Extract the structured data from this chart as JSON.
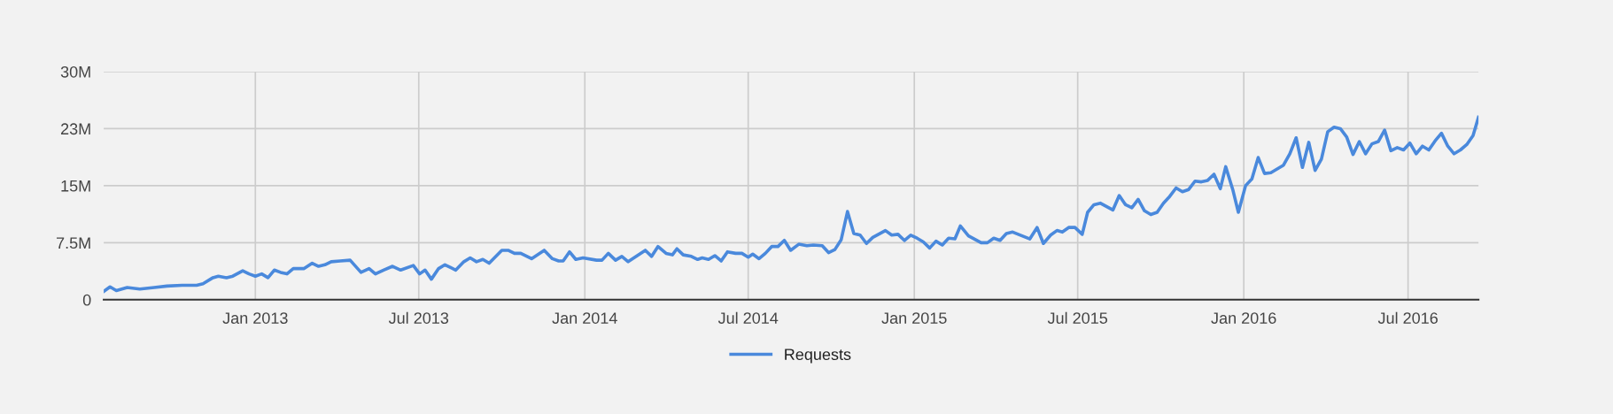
{
  "chart_data": {
    "type": "line",
    "x": [
      "2012-07-17",
      "2012-07-24",
      "2012-07-31",
      "2012-08-12",
      "2012-08-26",
      "2012-09-11",
      "2012-09-25",
      "2012-10-12",
      "2012-10-28",
      "2012-11-04",
      "2012-11-15",
      "2012-11-21",
      "2012-11-30",
      "2012-12-07",
      "2012-12-18",
      "2012-12-25",
      "2013-01-01",
      "2013-01-08",
      "2013-01-15",
      "2013-01-22",
      "2013-01-29",
      "2013-02-05",
      "2013-02-12",
      "2013-02-24",
      "2013-03-05",
      "2013-03-12",
      "2013-03-19",
      "2013-03-26",
      "2013-04-05",
      "2013-04-16",
      "2013-04-28",
      "2013-05-07",
      "2013-05-14",
      "2013-05-23",
      "2013-06-02",
      "2013-06-11",
      "2013-06-25",
      "2013-07-02",
      "2013-07-08",
      "2013-07-15",
      "2013-07-23",
      "2013-07-30",
      "2013-08-11",
      "2013-08-20",
      "2013-08-27",
      "2013-09-03",
      "2013-09-10",
      "2013-09-17",
      "2013-10-01",
      "2013-10-08",
      "2013-10-15",
      "2013-10-22",
      "2013-11-03",
      "2013-11-17",
      "2013-11-26",
      "2013-12-03",
      "2013-12-08",
      "2013-12-15",
      "2013-12-22",
      "2013-12-30",
      "2014-01-14",
      "2014-01-20",
      "2014-01-27",
      "2014-02-04",
      "2014-02-11",
      "2014-02-18",
      "2014-03-09",
      "2014-03-16",
      "2014-03-23",
      "2014-04-01",
      "2014-04-08",
      "2014-04-13",
      "2014-04-20",
      "2014-04-29",
      "2014-05-06",
      "2014-05-11",
      "2014-05-18",
      "2014-05-25",
      "2014-06-01",
      "2014-06-08",
      "2014-06-17",
      "2014-06-24",
      "2014-07-01",
      "2014-07-06",
      "2014-07-13",
      "2014-07-20",
      "2014-07-27",
      "2014-08-03",
      "2014-08-10",
      "2014-08-17",
      "2014-08-26",
      "2014-09-04",
      "2014-09-11",
      "2014-09-21",
      "2014-09-28",
      "2014-10-05",
      "2014-10-12",
      "2014-10-19",
      "2014-10-26",
      "2014-11-02",
      "2014-11-09",
      "2014-11-16",
      "2014-11-30",
      "2014-12-07",
      "2014-12-14",
      "2014-12-21",
      "2014-12-28",
      "2015-01-04",
      "2015-01-11",
      "2015-01-18",
      "2015-01-25",
      "2015-02-01",
      "2015-02-08",
      "2015-02-15",
      "2015-02-21",
      "2015-03-02",
      "2015-03-16",
      "2015-03-23",
      "2015-03-30",
      "2015-04-06",
      "2015-04-13",
      "2015-04-20",
      "2015-05-09",
      "2015-05-17",
      "2015-05-24",
      "2015-06-01",
      "2015-06-08",
      "2015-06-14",
      "2015-06-21",
      "2015-06-28",
      "2015-07-06",
      "2015-07-12",
      "2015-07-19",
      "2015-07-26",
      "2015-08-09",
      "2015-08-16",
      "2015-08-23",
      "2015-08-30",
      "2015-09-06",
      "2015-09-13",
      "2015-09-20",
      "2015-09-27",
      "2015-10-04",
      "2015-10-11",
      "2015-10-18",
      "2015-10-25",
      "2015-11-01",
      "2015-11-08",
      "2015-11-15",
      "2015-11-22",
      "2015-11-29",
      "2015-12-06",
      "2015-12-12",
      "2015-12-20",
      "2015-12-26",
      "2016-01-03",
      "2016-01-10",
      "2016-01-17",
      "2016-01-24",
      "2016-01-31",
      "2016-02-07",
      "2016-02-14",
      "2016-02-21",
      "2016-02-28",
      "2016-03-06",
      "2016-03-13",
      "2016-03-20",
      "2016-03-27",
      "2016-04-03",
      "2016-04-10",
      "2016-04-17",
      "2016-04-24",
      "2016-05-01",
      "2016-05-08",
      "2016-05-15",
      "2016-05-22",
      "2016-05-29",
      "2016-06-05",
      "2016-06-12",
      "2016-06-19",
      "2016-06-26",
      "2016-07-03",
      "2016-07-10",
      "2016-07-17",
      "2016-07-24",
      "2016-07-31",
      "2016-08-07",
      "2016-08-14",
      "2016-08-21",
      "2016-08-28",
      "2016-09-04",
      "2016-09-11",
      "2016-09-17"
    ],
    "series": [
      {
        "name": "Requests",
        "color": "#4a89dc",
        "values": [
          1.1,
          1.7,
          1.2,
          1.6,
          1.4,
          1.6,
          1.8,
          1.9,
          1.9,
          2.1,
          2.9,
          3.1,
          2.9,
          3.1,
          3.8,
          3.4,
          3.1,
          3.4,
          2.9,
          3.9,
          3.6,
          3.4,
          4.1,
          4.1,
          4.8,
          4.4,
          4.6,
          5.0,
          5.1,
          5.2,
          3.6,
          4.1,
          3.4,
          3.9,
          4.4,
          3.9,
          4.5,
          3.4,
          3.9,
          2.7,
          4.1,
          4.6,
          3.9,
          5.0,
          5.5,
          5.0,
          5.3,
          4.8,
          6.5,
          6.5,
          6.1,
          6.1,
          5.4,
          6.5,
          5.4,
          5.1,
          5.1,
          6.3,
          5.3,
          5.5,
          5.2,
          5.2,
          6.1,
          5.2,
          5.7,
          5.0,
          6.5,
          5.7,
          7.0,
          6.1,
          5.9,
          6.7,
          5.9,
          5.7,
          5.3,
          5.5,
          5.3,
          5.8,
          5.1,
          6.3,
          6.1,
          6.1,
          5.6,
          6.0,
          5.4,
          6.1,
          7.0,
          7.0,
          7.8,
          6.5,
          7.3,
          7.1,
          7.2,
          7.1,
          6.2,
          6.6,
          7.9,
          11.6,
          8.7,
          8.5,
          7.4,
          8.2,
          9.1,
          8.5,
          8.6,
          7.8,
          8.5,
          8.1,
          7.6,
          6.8,
          7.7,
          7.2,
          8.1,
          8.0,
          9.7,
          8.4,
          7.5,
          7.5,
          8.1,
          7.8,
          8.7,
          8.9,
          8.0,
          9.5,
          7.4,
          8.5,
          9.1,
          8.9,
          9.5,
          9.5,
          8.6,
          11.5,
          12.5,
          12.7,
          11.8,
          13.7,
          12.5,
          12.1,
          13.2,
          11.7,
          11.2,
          11.5,
          12.7,
          13.6,
          14.7,
          14.2,
          14.5,
          15.6,
          15.5,
          15.7,
          16.5,
          14.6,
          17.5,
          14.4,
          11.5,
          15.0,
          15.9,
          18.7,
          16.6,
          16.7,
          17.2,
          17.7,
          19.2,
          21.3,
          17.4,
          20.7,
          17.0,
          18.5,
          22.1,
          22.7,
          22.5,
          21.4,
          19.1,
          20.8,
          19.2,
          20.5,
          20.8,
          22.3,
          19.6,
          20.0,
          19.7,
          20.6,
          19.2,
          20.2,
          19.7,
          20.9,
          21.9,
          20.2,
          19.2,
          19.7,
          20.4,
          21.6,
          24.0
        ]
      }
    ],
    "xlim": [
      "2012-07-17",
      "2016-09-17"
    ],
    "xticks": [
      {
        "value": "2013-01-01",
        "label": "Jan 2013"
      },
      {
        "value": "2013-07-01",
        "label": "Jul 2013"
      },
      {
        "value": "2014-01-01",
        "label": "Jan 2014"
      },
      {
        "value": "2014-07-01",
        "label": "Jul 2014"
      },
      {
        "value": "2015-01-01",
        "label": "Jan 2015"
      },
      {
        "value": "2015-07-01",
        "label": "Jul 2015"
      },
      {
        "value": "2016-01-01",
        "label": "Jan 2016"
      },
      {
        "value": "2016-07-01",
        "label": "Jul 2016"
      }
    ],
    "ylim": [
      0,
      30
    ],
    "yticks": [
      0,
      {
        "value": 7.5,
        "label": "7.5M"
      },
      {
        "value": 15,
        "label": "15M"
      },
      {
        "value": 22.5,
        "label": "23M"
      },
      {
        "value": 30,
        "label": "30M"
      }
    ],
    "grid": true,
    "legend": "bottom",
    "marker": "none",
    "line_style": "solid"
  }
}
